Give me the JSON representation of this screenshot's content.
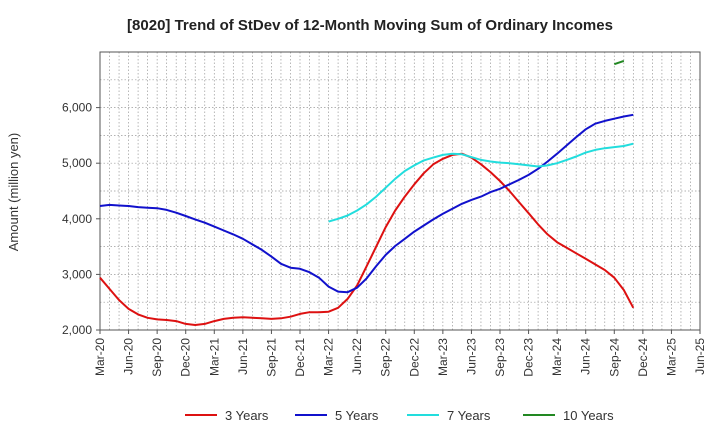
{
  "chart_data": {
    "type": "line",
    "title": "[8020]  Trend of StDev of 12-Month Moving Sum of Ordinary Incomes",
    "xlabel": "",
    "ylabel": "Amount (million yen)",
    "ylim": [
      2000,
      7000
    ],
    "yticks": [
      2000,
      3000,
      4000,
      5000,
      6000
    ],
    "ytick_labels": [
      "2,000",
      "3,000",
      "4,000",
      "5,000",
      "6,000"
    ],
    "xtick_labels": [
      "Mar-20",
      "Jun-20",
      "Sep-20",
      "Dec-20",
      "Mar-21",
      "Jun-21",
      "Sep-21",
      "Dec-21",
      "Mar-22",
      "Jun-22",
      "Sep-22",
      "Dec-22",
      "Mar-23",
      "Jun-23",
      "Sep-23",
      "Dec-23",
      "Mar-24",
      "Jun-24",
      "Sep-24",
      "Dec-24",
      "Mar-25",
      "Jun-25"
    ],
    "grid": true,
    "legend_position": "bottom",
    "series": [
      {
        "name": "3 Years",
        "color": "#dd1111",
        "start_index": 0,
        "values": [
          2940,
          2740,
          2540,
          2380,
          2280,
          2220,
          2190,
          2180,
          2160,
          2110,
          2090,
          2110,
          2160,
          2200,
          2220,
          2230,
          2220,
          2210,
          2200,
          2210,
          2240,
          2290,
          2320,
          2320,
          2330,
          2400,
          2560,
          2800,
          3150,
          3500,
          3850,
          4150,
          4400,
          4620,
          4820,
          4980,
          5080,
          5150,
          5170,
          5100,
          4980,
          4840,
          4680,
          4500,
          4300,
          4100,
          3900,
          3720,
          3580,
          3480,
          3380,
          3280,
          3180,
          3080,
          2940,
          2720,
          2400
        ]
      },
      {
        "name": "5 Years",
        "color": "#1111cc",
        "start_index": 0,
        "values": [
          4230,
          4250,
          4240,
          4230,
          4210,
          4200,
          4190,
          4160,
          4110,
          4050,
          3990,
          3930,
          3860,
          3790,
          3720,
          3640,
          3540,
          3440,
          3320,
          3190,
          3120,
          3100,
          3040,
          2940,
          2780,
          2690,
          2680,
          2760,
          2930,
          3150,
          3350,
          3510,
          3640,
          3770,
          3880,
          3990,
          4090,
          4180,
          4270,
          4340,
          4400,
          4480,
          4540,
          4620,
          4700,
          4790,
          4900,
          5030,
          5170,
          5320,
          5470,
          5610,
          5710,
          5760,
          5800,
          5840,
          5870
        ]
      },
      {
        "name": "7 Years",
        "color": "#22dddd",
        "start_index": 24,
        "values": [
          3950,
          4000,
          4060,
          4150,
          4260,
          4400,
          4560,
          4720,
          4860,
          4960,
          5050,
          5100,
          5150,
          5170,
          5160,
          5110,
          5060,
          5030,
          5010,
          5000,
          4980,
          4960,
          4940,
          4960,
          5000,
          5060,
          5120,
          5190,
          5240,
          5270,
          5290,
          5310,
          5350
        ]
      },
      {
        "name": "10 Years",
        "color": "#228822",
        "start_index": 54,
        "values": [
          6780,
          6840
        ]
      }
    ]
  }
}
